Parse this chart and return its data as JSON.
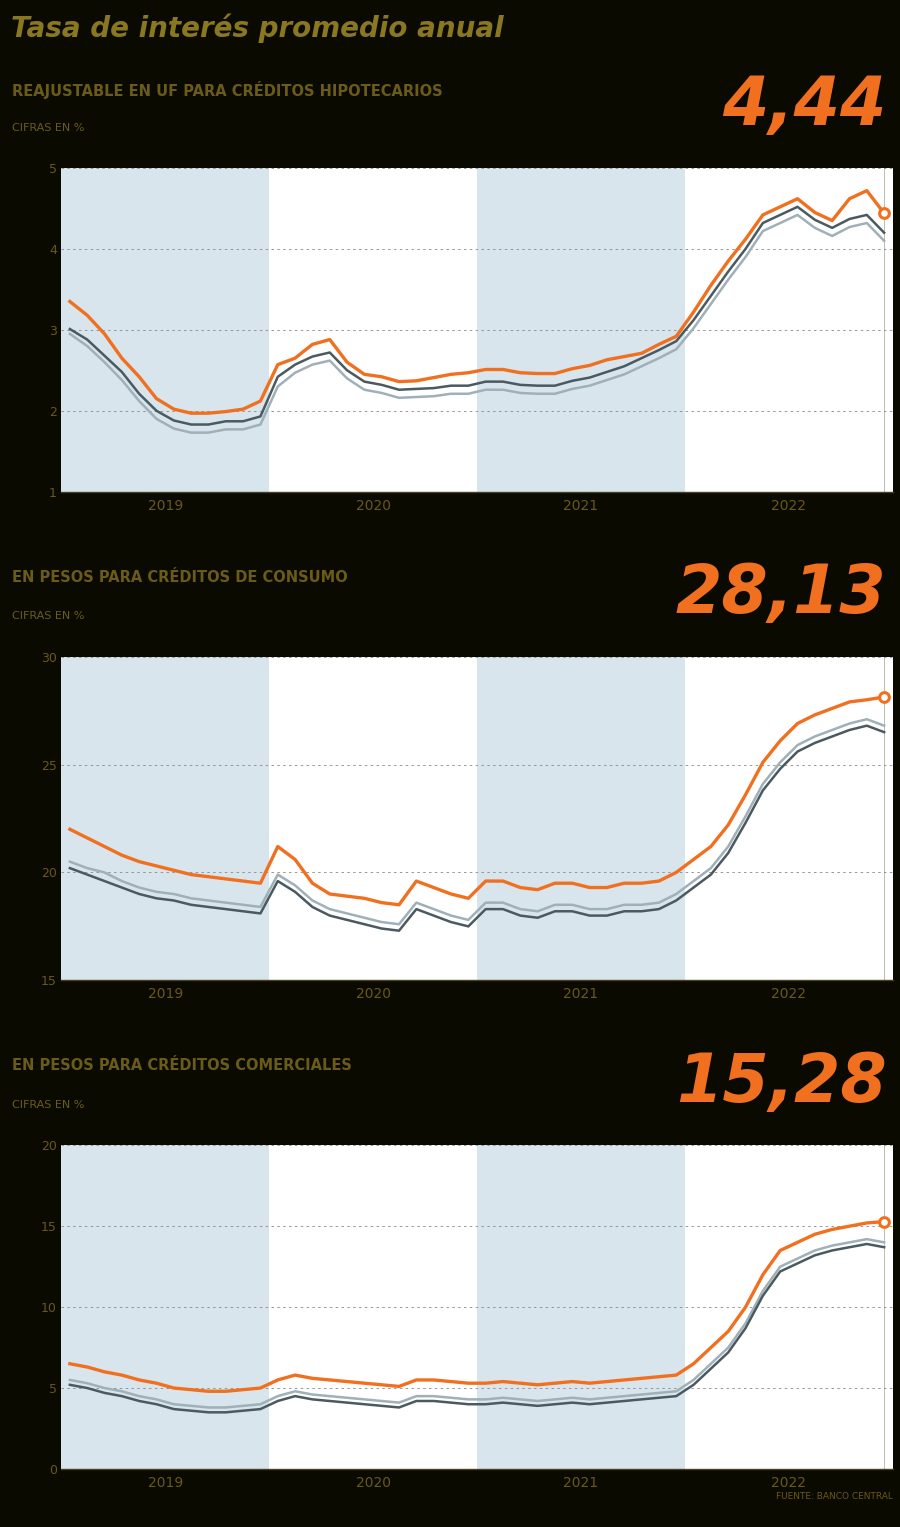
{
  "title": "Tasa de interés promedio anual",
  "bg_color": "#0a0a00",
  "title_bg": "#1a1600",
  "title_color": "#8a7820",
  "separator_color": "#5a5030",
  "orange": "#f07020",
  "darkgray": "#4a5a60",
  "lightgray": "#a0b0b8",
  "chart_bg_shaded": "#d8e5ec",
  "chart_bg_white": "#ffffff",
  "grid_color": "#888888",
  "tick_color": "#6a5818",
  "source_text": "FUENTE: BANCO CENTRAL",
  "chart1": {
    "label": "REAJUSTABLE EN UF PARA CRÉDITOS HIPOTECARIOS",
    "sublabel": "CIFRAS EN %",
    "value": "4,44",
    "ylim": [
      1,
      5
    ],
    "yticks": [
      1,
      2,
      3,
      4,
      5
    ],
    "orange_data": [
      3.35,
      3.18,
      2.95,
      2.65,
      2.42,
      2.15,
      2.02,
      1.97,
      1.97,
      1.99,
      2.02,
      2.12,
      2.57,
      2.65,
      2.82,
      2.88,
      2.6,
      2.45,
      2.42,
      2.36,
      2.37,
      2.41,
      2.45,
      2.47,
      2.51,
      2.51,
      2.47,
      2.46,
      2.46,
      2.52,
      2.56,
      2.63,
      2.67,
      2.71,
      2.82,
      2.92,
      3.22,
      3.55,
      3.85,
      4.12,
      4.42,
      4.52,
      4.62,
      4.45,
      4.35,
      4.62,
      4.72,
      4.44
    ],
    "dark_data": [
      3.01,
      2.88,
      2.68,
      2.48,
      2.21,
      2.0,
      1.88,
      1.83,
      1.83,
      1.87,
      1.87,
      1.93,
      2.42,
      2.57,
      2.67,
      2.72,
      2.5,
      2.36,
      2.32,
      2.26,
      2.27,
      2.28,
      2.31,
      2.31,
      2.36,
      2.36,
      2.32,
      2.31,
      2.31,
      2.37,
      2.41,
      2.48,
      2.55,
      2.65,
      2.75,
      2.86,
      3.12,
      3.42,
      3.72,
      4.0,
      4.32,
      4.42,
      4.52,
      4.36,
      4.26,
      4.37,
      4.42,
      4.2
    ],
    "light_data": [
      2.95,
      2.8,
      2.6,
      2.38,
      2.12,
      1.9,
      1.78,
      1.73,
      1.73,
      1.77,
      1.77,
      1.83,
      2.3,
      2.47,
      2.57,
      2.62,
      2.4,
      2.26,
      2.22,
      2.16,
      2.17,
      2.18,
      2.21,
      2.21,
      2.26,
      2.26,
      2.22,
      2.21,
      2.21,
      2.27,
      2.31,
      2.38,
      2.45,
      2.55,
      2.65,
      2.76,
      3.02,
      3.32,
      3.62,
      3.9,
      4.22,
      4.32,
      4.42,
      4.26,
      4.16,
      4.27,
      4.32,
      4.1
    ]
  },
  "chart2": {
    "label": "EN PESOS PARA CRÉDITOS DE CONSUMO",
    "sublabel": "CIFRAS EN %",
    "value": "28,13",
    "ylim": [
      15,
      30
    ],
    "yticks": [
      15,
      20,
      25,
      30
    ],
    "orange_data": [
      22.0,
      21.6,
      21.2,
      20.8,
      20.5,
      20.3,
      20.1,
      19.9,
      19.8,
      19.7,
      19.6,
      19.5,
      21.2,
      20.6,
      19.5,
      19.0,
      18.9,
      18.8,
      18.6,
      18.5,
      19.6,
      19.3,
      19.0,
      18.8,
      19.6,
      19.6,
      19.3,
      19.2,
      19.5,
      19.5,
      19.3,
      19.3,
      19.5,
      19.5,
      19.6,
      20.0,
      20.6,
      21.2,
      22.2,
      23.6,
      25.1,
      26.1,
      26.9,
      27.3,
      27.6,
      27.9,
      28.0,
      28.13
    ],
    "dark_data": [
      20.2,
      19.9,
      19.6,
      19.3,
      19.0,
      18.8,
      18.7,
      18.5,
      18.4,
      18.3,
      18.2,
      18.1,
      19.6,
      19.1,
      18.4,
      18.0,
      17.8,
      17.6,
      17.4,
      17.3,
      18.3,
      18.0,
      17.7,
      17.5,
      18.3,
      18.3,
      18.0,
      17.9,
      18.2,
      18.2,
      18.0,
      18.0,
      18.2,
      18.2,
      18.3,
      18.7,
      19.3,
      19.9,
      20.9,
      22.3,
      23.8,
      24.8,
      25.6,
      26.0,
      26.3,
      26.6,
      26.8,
      26.5
    ],
    "light_data": [
      20.5,
      20.2,
      20.0,
      19.6,
      19.3,
      19.1,
      19.0,
      18.8,
      18.7,
      18.6,
      18.5,
      18.4,
      19.9,
      19.4,
      18.7,
      18.3,
      18.1,
      17.9,
      17.7,
      17.6,
      18.6,
      18.3,
      18.0,
      17.8,
      18.6,
      18.6,
      18.3,
      18.2,
      18.5,
      18.5,
      18.3,
      18.3,
      18.5,
      18.5,
      18.6,
      19.0,
      19.6,
      20.2,
      21.2,
      22.6,
      24.1,
      25.1,
      25.9,
      26.3,
      26.6,
      26.9,
      27.1,
      26.8
    ]
  },
  "chart3": {
    "label": "EN PESOS PARA CRÉDITOS COMERCIALES",
    "sublabel": "CIFRAS EN %",
    "value": "15,28",
    "ylim": [
      0,
      20
    ],
    "yticks": [
      0,
      5,
      10,
      15,
      20
    ],
    "orange_data": [
      6.5,
      6.3,
      6.0,
      5.8,
      5.5,
      5.3,
      5.0,
      4.9,
      4.8,
      4.8,
      4.9,
      5.0,
      5.5,
      5.8,
      5.6,
      5.5,
      5.4,
      5.3,
      5.2,
      5.1,
      5.5,
      5.5,
      5.4,
      5.3,
      5.3,
      5.4,
      5.3,
      5.2,
      5.3,
      5.4,
      5.3,
      5.4,
      5.5,
      5.6,
      5.7,
      5.8,
      6.5,
      7.5,
      8.5,
      10.0,
      12.0,
      13.5,
      14.0,
      14.5,
      14.8,
      15.0,
      15.2,
      15.28
    ],
    "dark_data": [
      5.2,
      5.0,
      4.7,
      4.5,
      4.2,
      4.0,
      3.7,
      3.6,
      3.5,
      3.5,
      3.6,
      3.7,
      4.2,
      4.5,
      4.3,
      4.2,
      4.1,
      4.0,
      3.9,
      3.8,
      4.2,
      4.2,
      4.1,
      4.0,
      4.0,
      4.1,
      4.0,
      3.9,
      4.0,
      4.1,
      4.0,
      4.1,
      4.2,
      4.3,
      4.4,
      4.5,
      5.2,
      6.2,
      7.2,
      8.7,
      10.7,
      12.2,
      12.7,
      13.2,
      13.5,
      13.7,
      13.9,
      13.7
    ],
    "light_data": [
      5.5,
      5.3,
      5.0,
      4.8,
      4.5,
      4.3,
      4.0,
      3.9,
      3.8,
      3.8,
      3.9,
      4.0,
      4.5,
      4.8,
      4.6,
      4.5,
      4.4,
      4.3,
      4.2,
      4.1,
      4.5,
      4.5,
      4.4,
      4.3,
      4.3,
      4.4,
      4.3,
      4.2,
      4.3,
      4.4,
      4.3,
      4.4,
      4.5,
      4.6,
      4.7,
      4.8,
      5.5,
      6.5,
      7.5,
      9.0,
      11.0,
      12.5,
      13.0,
      13.5,
      13.8,
      14.0,
      14.2,
      14.0
    ]
  },
  "n_points": 48,
  "source": "FUENTE: BANCO CENTRAL"
}
